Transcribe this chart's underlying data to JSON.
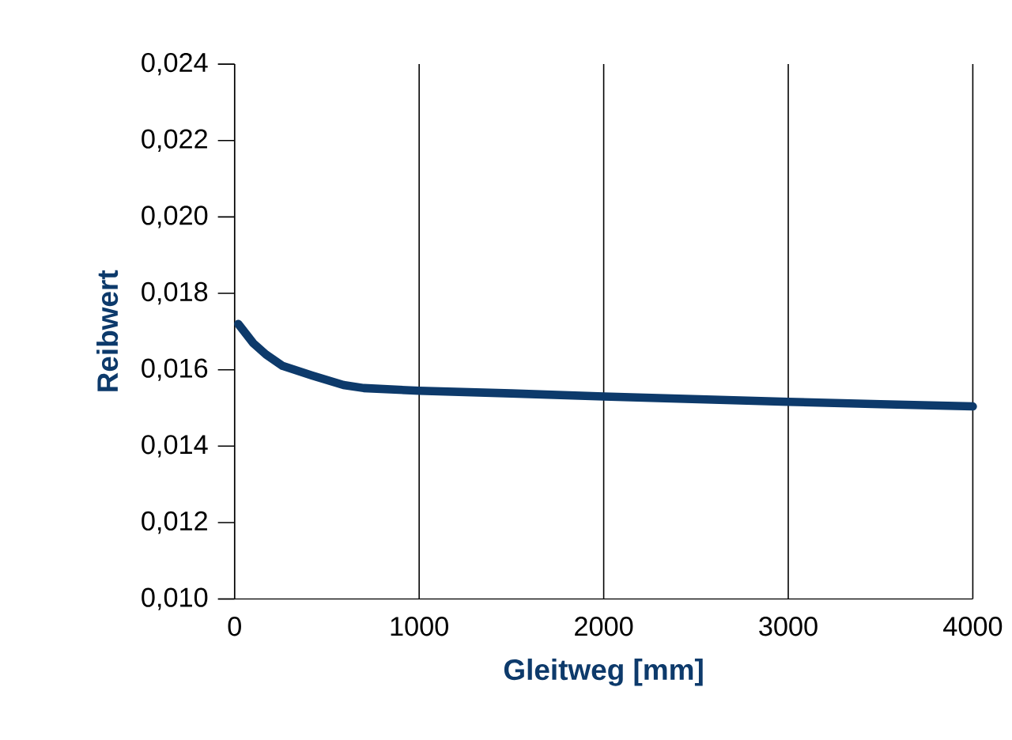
{
  "chart_data": {
    "type": "line",
    "xlabel": "Gleitweg [mm]",
    "ylabel": "Reibwert",
    "x": [
      20,
      100,
      170,
      260,
      420,
      590,
      700,
      1000,
      1500,
      2000,
      2500,
      3000,
      3500,
      4000
    ],
    "values": [
      0.0172,
      0.0167,
      0.0164,
      0.0161,
      0.01585,
      0.0156,
      0.01552,
      0.01545,
      0.01538,
      0.0153,
      0.01523,
      0.01516,
      0.0151,
      0.01504
    ],
    "color": "#0d3a6b",
    "marker": "none",
    "line_style": "solid",
    "grid": "x",
    "xlim": [
      0,
      4000
    ],
    "xticks": [
      0,
      1000,
      2000,
      3000,
      4000
    ],
    "ylim": [
      0.01,
      0.024
    ],
    "yticks": [
      {
        "value": 0.01,
        "label": "0,010"
      },
      {
        "value": 0.012,
        "label": "0,012"
      },
      {
        "value": 0.014,
        "label": "0,014"
      },
      {
        "value": 0.016,
        "label": "0,016"
      },
      {
        "value": 0.018,
        "label": "0,018"
      },
      {
        "value": 0.02,
        "label": "0,020"
      },
      {
        "value": 0.022,
        "label": "0,022"
      },
      {
        "value": 0.024,
        "label": "0,024"
      }
    ]
  }
}
